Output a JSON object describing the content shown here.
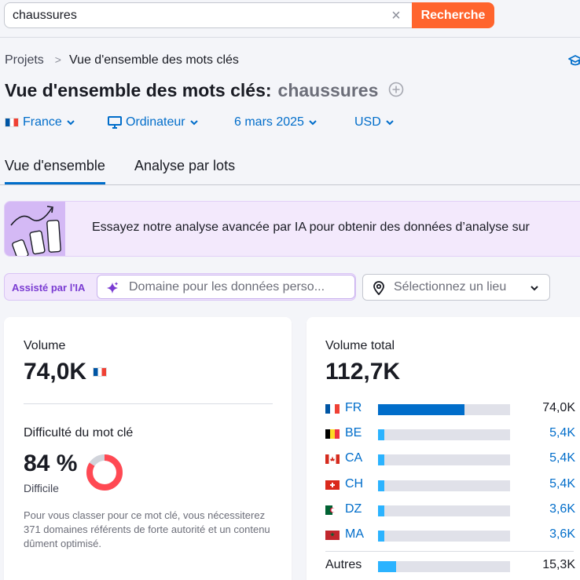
{
  "search": {
    "value": "chaussures",
    "button_label": "Recherche"
  },
  "breadcrumb": {
    "items": [
      "Projets",
      "Vue d'ensemble des mots clés"
    ]
  },
  "title": {
    "label": "Vue d'ensemble des mots clés:",
    "keyword": "chaussures"
  },
  "filters": {
    "country": "France",
    "device": "Ordinateur",
    "date": "6 mars 2025",
    "currency": "USD"
  },
  "tabs": [
    {
      "label": "Vue d'ensemble",
      "active": true
    },
    {
      "label": "Analyse par lots",
      "active": false
    }
  ],
  "banner": {
    "text": "Essayez notre analyse avancée par IA pour obtenir des données d’analyse sur"
  },
  "ai_assist": {
    "label": "Assisté par l'IA",
    "placeholder": "Domaine pour les données perso...",
    "location_placeholder": "Sélectionnez un lieu"
  },
  "volume_card": {
    "volume_label": "Volume",
    "volume_value": "74,0K",
    "kd_label": "Difficulté du mot clé",
    "kd_value": "84 %",
    "kd_percent": 84,
    "kd_level": "Difficile",
    "kd_description": "Pour vous classer pour ce mot clé, vous nécessiterez 371 domaines référents de forte autorité et un contenu dûment optimisé."
  },
  "total_card": {
    "label": "Volume total",
    "value": "112,7K",
    "countries": [
      {
        "code": "FR",
        "value": "74,0K",
        "share": 0.657,
        "flag": "fr"
      },
      {
        "code": "BE",
        "value": "5,4K",
        "share": 0.048,
        "flag": "be"
      },
      {
        "code": "CA",
        "value": "5,4K",
        "share": 0.048,
        "flag": "ca"
      },
      {
        "code": "CH",
        "value": "5,4K",
        "share": 0.048,
        "flag": "ch"
      },
      {
        "code": "DZ",
        "value": "3,6K",
        "share": 0.032,
        "flag": "dz"
      },
      {
        "code": "MA",
        "value": "3,6K",
        "share": 0.032,
        "flag": "ma"
      }
    ],
    "others": {
      "label": "Autres",
      "value": "15,3K",
      "share": 0.136
    }
  },
  "colors": {
    "accent": "#006dca",
    "search_button": "#ff642d",
    "ai_purple": "#7a3bd2",
    "kd_red": "#ff4953",
    "bar_light": "#2bb3ff"
  }
}
